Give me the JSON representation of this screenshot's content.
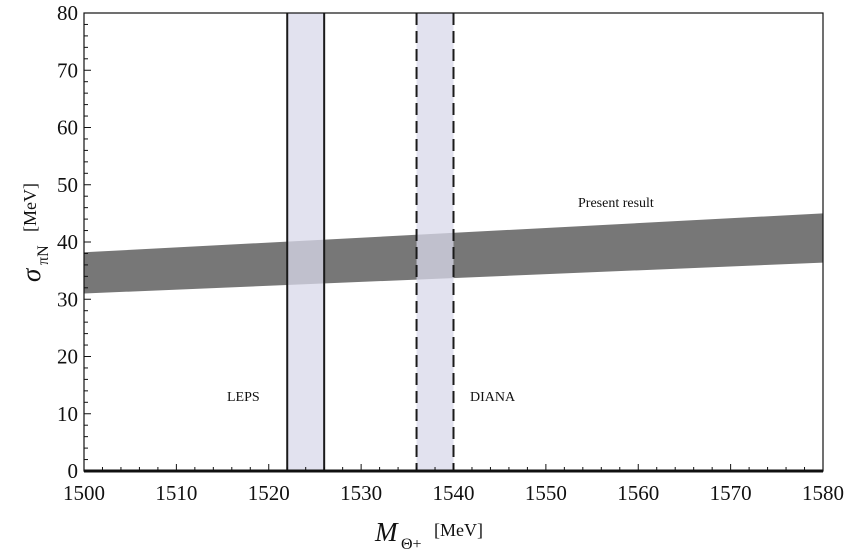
{
  "chart_data": {
    "type": "area",
    "xlim": [
      1500,
      1580
    ],
    "ylim": [
      0,
      80
    ],
    "xticks": [
      "1500",
      "1510",
      "1520",
      "1530",
      "1540",
      "1550",
      "1560",
      "1570",
      "1580"
    ],
    "yticks": [
      "0",
      "10",
      "20",
      "30",
      "40",
      "50",
      "60",
      "70",
      "80"
    ],
    "xlabel": {
      "symbol": "M",
      "subscript": "Θ+",
      "unit": "[MeV]"
    },
    "ylabel": {
      "symbol": "σ",
      "subscript": "πN",
      "unit": "[MeV]"
    },
    "band": {
      "label": "Present result",
      "x": [
        1500,
        1580
      ],
      "lower": [
        31.0,
        36.4
      ],
      "upper": [
        38.2,
        45.0
      ],
      "color": "#777777"
    },
    "vertical_bands": [
      {
        "label": "LEPS",
        "x_range": [
          1522,
          1526
        ],
        "border": "solid",
        "fill": "#d8d8ea"
      },
      {
        "label": "DIANA",
        "x_range": [
          1536,
          1540
        ],
        "border": "dashed",
        "fill": "#d8d8ea"
      }
    ],
    "grid": false
  }
}
